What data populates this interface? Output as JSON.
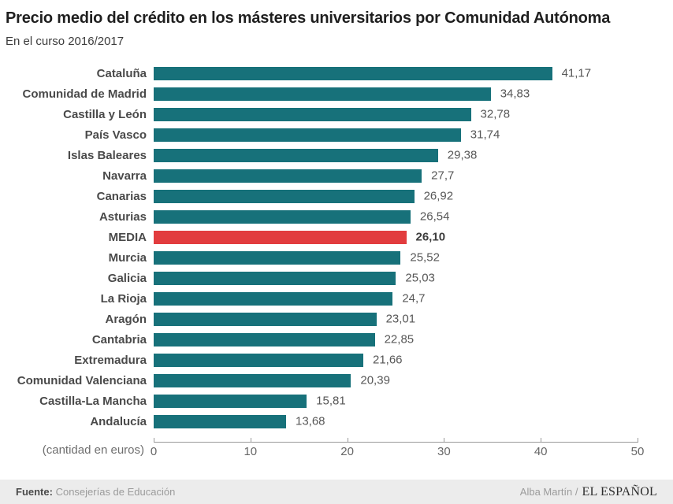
{
  "header": {
    "title": "Precio medio del crédito en los másteres universitarios por Comunidad Autónoma",
    "subtitle": "En el curso 2016/2017"
  },
  "chart_data": {
    "type": "bar",
    "orientation": "horizontal",
    "title": "Precio medio del crédito en los másteres universitarios por Comunidad Autónoma",
    "subtitle": "En el curso 2016/2017",
    "categories": [
      "Cataluña",
      "Comunidad de Madrid",
      "Castilla y León",
      "País Vasco",
      "Islas Baleares",
      "Navarra",
      "Canarias",
      "Asturias",
      "MEDIA",
      "Murcia",
      "Galicia",
      "La Rioja",
      "Aragón",
      "Cantabria",
      "Extremadura",
      "Comunidad Valenciana",
      "Castilla-La Mancha",
      "Andalucía"
    ],
    "values": [
      41.17,
      34.83,
      32.78,
      31.74,
      29.38,
      27.7,
      26.92,
      26.54,
      26.1,
      25.52,
      25.03,
      24.7,
      23.01,
      22.85,
      21.66,
      20.39,
      15.81,
      13.68
    ],
    "value_labels": [
      "41,17",
      "34,83",
      "32,78",
      "31,74",
      "29,38",
      "27,7",
      "26,92",
      "26,54",
      "26,10",
      "25,52",
      "25,03",
      "24,7",
      "23,01",
      "22,85",
      "21,66",
      "20,39",
      "15,81",
      "13,68"
    ],
    "highlight_category": "MEDIA",
    "xlabel": "(cantidad en euros)",
    "ylabel": "",
    "xlim": [
      0,
      50
    ],
    "axis_ticks": [
      0,
      10,
      20,
      30,
      40,
      50
    ],
    "grid": false,
    "legend": false,
    "colors": {
      "bar": "#17717a",
      "highlight": "#e23c3e"
    }
  },
  "footer": {
    "source_label": "Fuente:",
    "source_value": "Consejerías de Educación",
    "credit": "Alba Martín /",
    "brand": "EL ESPAÑOL"
  }
}
